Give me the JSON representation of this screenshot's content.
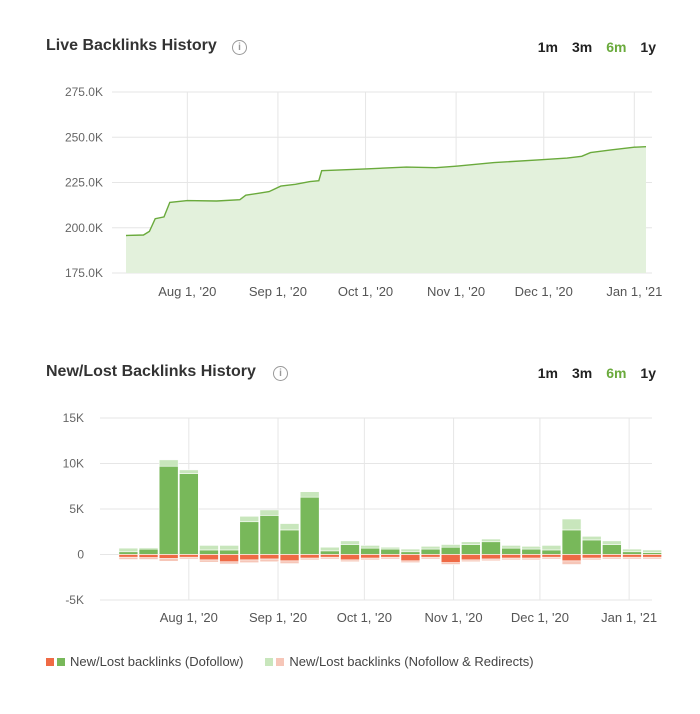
{
  "live": {
    "title": "Live Backlinks History",
    "ranges": [
      "1m",
      "3m",
      "6m",
      "1y"
    ],
    "active_range": "6m"
  },
  "newlost": {
    "title": "New/Lost Backlinks History",
    "ranges": [
      "1m",
      "3m",
      "6m",
      "1y"
    ],
    "active_range": "6m"
  },
  "legend": {
    "dofollow_label": "New/Lost backlinks (Dofollow)",
    "nofollow_label": "New/Lost backlinks (Nofollow & Redirects)"
  },
  "colors": {
    "area_fill": "#e3f1dc",
    "area_line": "#6aaa3c",
    "new_dofollow": "#78b85a",
    "new_nofollow": "#c8e6bc",
    "lost_dofollow": "#ef6a45",
    "lost_nofollow": "#f6c6b8",
    "active_range": "#6aaa3c"
  },
  "chart_data": [
    {
      "type": "area",
      "title": "Live Backlinks History",
      "y_ticks": [
        "275.0K",
        "250.0K",
        "225.0K",
        "200.0K",
        "175.0K"
      ],
      "x_ticks": [
        "Aug 1, '20",
        "Sep 1, '20",
        "Oct 1, '20",
        "Nov 1, '20",
        "Dec 1, '20",
        "Jan 1, '21"
      ],
      "ylim": [
        175000,
        275000
      ],
      "x_range_days": [
        -21,
        157
      ],
      "x_tick_days": [
        0,
        31,
        61,
        92,
        122,
        153
      ],
      "grid": true,
      "points": [
        {
          "x": -21,
          "y": 195700
        },
        {
          "x": -15,
          "y": 196000
        },
        {
          "x": -13,
          "y": 198000
        },
        {
          "x": -11,
          "y": 205000
        },
        {
          "x": -8,
          "y": 206000
        },
        {
          "x": -6,
          "y": 214000
        },
        {
          "x": 0,
          "y": 215000
        },
        {
          "x": 10,
          "y": 214800
        },
        {
          "x": 18,
          "y": 215500
        },
        {
          "x": 20,
          "y": 218000
        },
        {
          "x": 24,
          "y": 219000
        },
        {
          "x": 28,
          "y": 220000
        },
        {
          "x": 32,
          "y": 223000
        },
        {
          "x": 37,
          "y": 224000
        },
        {
          "x": 42,
          "y": 225500
        },
        {
          "x": 45,
          "y": 226000
        },
        {
          "x": 46,
          "y": 231500
        },
        {
          "x": 61,
          "y": 232500
        },
        {
          "x": 75,
          "y": 233500
        },
        {
          "x": 85,
          "y": 233200
        },
        {
          "x": 92,
          "y": 234000
        },
        {
          "x": 105,
          "y": 236000
        },
        {
          "x": 120,
          "y": 237500
        },
        {
          "x": 130,
          "y": 238500
        },
        {
          "x": 135,
          "y": 239500
        },
        {
          "x": 138,
          "y": 241500
        },
        {
          "x": 145,
          "y": 243000
        },
        {
          "x": 153,
          "y": 244500
        },
        {
          "x": 157,
          "y": 244800
        }
      ]
    },
    {
      "type": "bar",
      "title": "New/Lost Backlinks History",
      "y_ticks": [
        "15K",
        "10K",
        "5K",
        "0",
        "-5K"
      ],
      "x_ticks": [
        "Aug 1, '20",
        "Sep 1, '20",
        "Oct 1, '20",
        "Nov 1, '20",
        "Dec 1, '20",
        "Jan 1, '21"
      ],
      "ylim": [
        -5000,
        15000
      ],
      "x_range_days": [
        -26,
        154
      ],
      "x_tick_days": [
        0,
        31,
        61,
        92,
        122,
        153
      ],
      "grid": true,
      "stacked": true,
      "series": [
        {
          "name": "New/Lost backlinks (Dofollow)"
        },
        {
          "name": "New/Lost backlinks (Nofollow & Redirects)"
        }
      ],
      "bars": [
        {
          "x": -21,
          "new_dofollow": 300,
          "new_nofollow": 400,
          "lost_dofollow": -300,
          "lost_nofollow": -250
        },
        {
          "x": -14,
          "new_dofollow": 600,
          "new_nofollow": 150,
          "lost_dofollow": -350,
          "lost_nofollow": -200
        },
        {
          "x": -7,
          "new_dofollow": 9700,
          "new_nofollow": 700,
          "lost_dofollow": -450,
          "lost_nofollow": -300
        },
        {
          "x": 0,
          "new_dofollow": 8900,
          "new_nofollow": 400,
          "lost_dofollow": -300,
          "lost_nofollow": -200
        },
        {
          "x": 7,
          "new_dofollow": 500,
          "new_nofollow": 500,
          "lost_dofollow": -600,
          "lost_nofollow": -250
        },
        {
          "x": 14,
          "new_dofollow": 500,
          "new_nofollow": 500,
          "lost_dofollow": -800,
          "lost_nofollow": -250
        },
        {
          "x": 21,
          "new_dofollow": 3600,
          "new_nofollow": 600,
          "lost_dofollow": -600,
          "lost_nofollow": -300
        },
        {
          "x": 28,
          "new_dofollow": 4300,
          "new_nofollow": 600,
          "lost_dofollow": -500,
          "lost_nofollow": -300
        },
        {
          "x": 35,
          "new_dofollow": 2700,
          "new_nofollow": 700,
          "lost_dofollow": -700,
          "lost_nofollow": -300
        },
        {
          "x": 42,
          "new_dofollow": 6300,
          "new_nofollow": 600,
          "lost_dofollow": -400,
          "lost_nofollow": -200
        },
        {
          "x": 49,
          "new_dofollow": 400,
          "new_nofollow": 400,
          "lost_dofollow": -300,
          "lost_nofollow": -200
        },
        {
          "x": 56,
          "new_dofollow": 1100,
          "new_nofollow": 400,
          "lost_dofollow": -600,
          "lost_nofollow": -200
        },
        {
          "x": 63,
          "new_dofollow": 700,
          "new_nofollow": 300,
          "lost_dofollow": -400,
          "lost_nofollow": -200
        },
        {
          "x": 70,
          "new_dofollow": 600,
          "new_nofollow": 200,
          "lost_dofollow": -300,
          "lost_nofollow": -200
        },
        {
          "x": 77,
          "new_dofollow": 300,
          "new_nofollow": 300,
          "lost_dofollow": -700,
          "lost_nofollow": -200
        },
        {
          "x": 84,
          "new_dofollow": 600,
          "new_nofollow": 300,
          "lost_dofollow": -300,
          "lost_nofollow": -200
        },
        {
          "x": 91,
          "new_dofollow": 800,
          "new_nofollow": 300,
          "lost_dofollow": -900,
          "lost_nofollow": -200
        },
        {
          "x": 98,
          "new_dofollow": 1100,
          "new_nofollow": 300,
          "lost_dofollow": -600,
          "lost_nofollow": -200
        },
        {
          "x": 105,
          "new_dofollow": 1400,
          "new_nofollow": 300,
          "lost_dofollow": -500,
          "lost_nofollow": -200
        },
        {
          "x": 112,
          "new_dofollow": 700,
          "new_nofollow": 300,
          "lost_dofollow": -400,
          "lost_nofollow": -200
        },
        {
          "x": 119,
          "new_dofollow": 600,
          "new_nofollow": 300,
          "lost_dofollow": -400,
          "lost_nofollow": -200
        },
        {
          "x": 126,
          "new_dofollow": 500,
          "new_nofollow": 500,
          "lost_dofollow": -300,
          "lost_nofollow": -200
        },
        {
          "x": 133,
          "new_dofollow": 2700,
          "new_nofollow": 1200,
          "lost_dofollow": -700,
          "lost_nofollow": -400
        },
        {
          "x": 140,
          "new_dofollow": 1600,
          "new_nofollow": 400,
          "lost_dofollow": -400,
          "lost_nofollow": -200
        },
        {
          "x": 147,
          "new_dofollow": 1100,
          "new_nofollow": 400,
          "lost_dofollow": -300,
          "lost_nofollow": -200
        },
        {
          "x": 154,
          "new_dofollow": 300,
          "new_nofollow": 300,
          "lost_dofollow": -300,
          "lost_nofollow": -200
        },
        {
          "x": 161,
          "new_dofollow": 200,
          "new_nofollow": 300,
          "lost_dofollow": -300,
          "lost_nofollow": -200
        }
      ]
    }
  ]
}
